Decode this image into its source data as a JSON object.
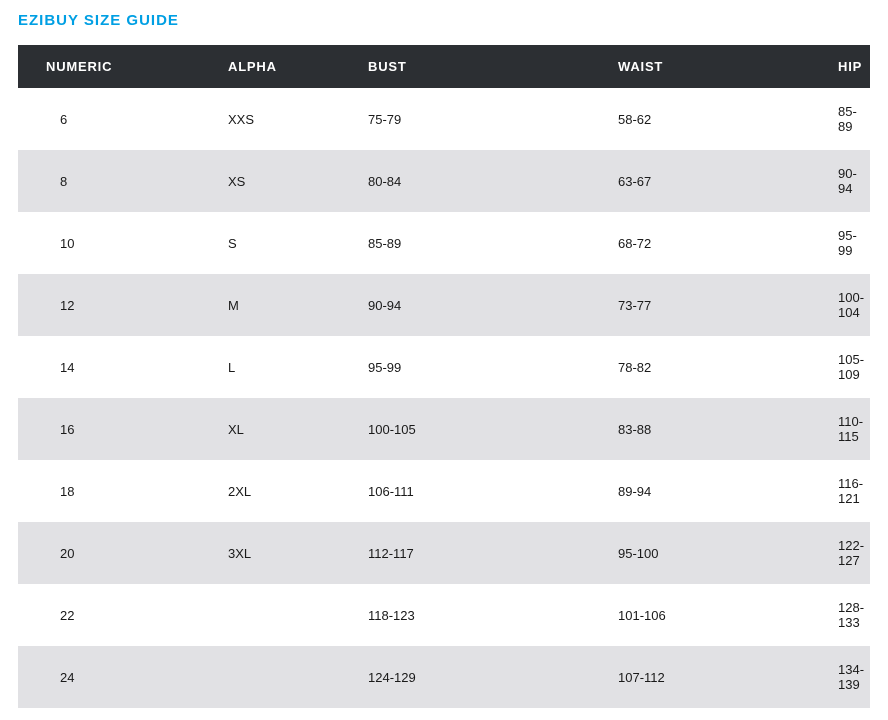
{
  "title": "EZIBUY SIZE GUIDE",
  "title_color": "#009fe3",
  "table": {
    "header_bg": "#2c2f33",
    "header_text_color": "#ffffff",
    "row_bg_odd": "#ffffff",
    "row_bg_even": "#e1e1e4",
    "cell_text_color": "#1a1a1a",
    "header_fontsize": 13,
    "cell_fontsize": 13,
    "columns": [
      "NUMERIC",
      "ALPHA",
      "BUST",
      "WAIST",
      "HIP"
    ],
    "rows": [
      [
        "6",
        "XXS",
        "75-79",
        "58-62",
        "85-89"
      ],
      [
        "8",
        "XS",
        "80-84",
        "63-67",
        "90-94"
      ],
      [
        "10",
        "S",
        "85-89",
        "68-72",
        "95-99"
      ],
      [
        "12",
        "M",
        "90-94",
        "73-77",
        "100-104"
      ],
      [
        "14",
        "L",
        "95-99",
        "78-82",
        "105-109"
      ],
      [
        "16",
        "XL",
        "100-105",
        "83-88",
        "110-115"
      ],
      [
        "18",
        "2XL",
        "106-111",
        "89-94",
        "116-121"
      ],
      [
        "20",
        "3XL",
        "112-117",
        "95-100",
        "122-127"
      ],
      [
        "22",
        "",
        "118-123",
        "101-106",
        "128-133"
      ],
      [
        "24",
        "",
        "124-129",
        "107-112",
        "134-139"
      ]
    ]
  }
}
